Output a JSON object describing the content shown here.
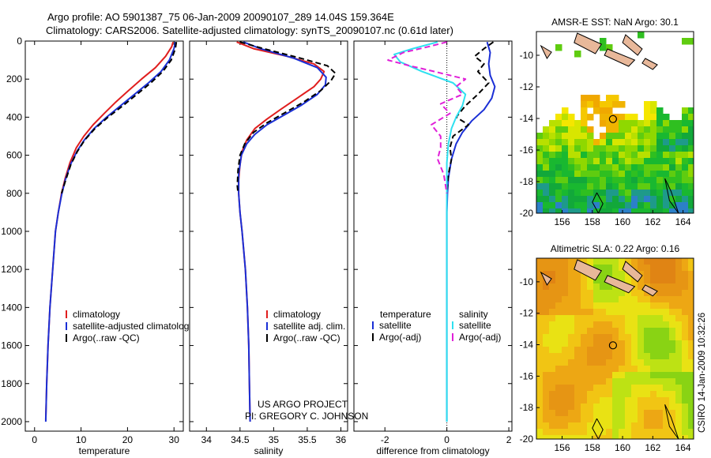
{
  "header": {
    "line1": "Argo profile: AO 5901387_75 06-Jan-2009 20090107_289 14.04S 159.364E",
    "line2": "Climatology: CARS2006. Satellite-adjusted climatology: synTS_20090107.nc (0.61d later)"
  },
  "credits": {
    "line1": "US ARGO PROJECT",
    "line2": "PI: GREGORY C. JOHNSON"
  },
  "timestamp": "CSIRO 14-Jan-2009 10:32:26",
  "colors": {
    "red": "#e01e1e",
    "blue": "#1a2fd6",
    "cyan": "#2ee0f0",
    "magenta": "#e020d8",
    "black": "#000000"
  },
  "chart_data": [
    {
      "type": "line",
      "name": "temperature-profile",
      "xlabel": "temperature",
      "ylabel": "",
      "xlim": [
        -2,
        32
      ],
      "ylim": [
        2050,
        0
      ],
      "xticks": [
        0,
        10,
        20,
        30
      ],
      "yticks": [
        0,
        200,
        400,
        600,
        800,
        1000,
        1200,
        1400,
        1600,
        1800,
        2000
      ],
      "legend": [
        "climatology",
        "satellite-adjusted climatology",
        "Argo(..raw -QC)"
      ],
      "series": [
        {
          "name": "climatology",
          "color": "red",
          "dash": false,
          "points": [
            [
              29.8,
              5
            ],
            [
              29.5,
              30
            ],
            [
              28.2,
              80
            ],
            [
              26,
              140
            ],
            [
              23,
              200
            ],
            [
              20.2,
              260
            ],
            [
              17.5,
              320
            ],
            [
              15,
              380
            ],
            [
              12.6,
              440
            ],
            [
              10.6,
              500
            ],
            [
              9,
              560
            ],
            [
              7.6,
              640
            ],
            [
              6.6,
              720
            ],
            [
              5.8,
              800
            ],
            [
              5.1,
              900
            ],
            [
              4.5,
              1000
            ],
            [
              3.9,
              1200
            ],
            [
              3.3,
              1400
            ],
            [
              2.9,
              1600
            ],
            [
              2.6,
              1800
            ],
            [
              2.4,
              1990
            ]
          ]
        },
        {
          "name": "satellite-adjusted climatology",
          "color": "blue",
          "dash": false,
          "points": [
            [
              30.3,
              5
            ],
            [
              30,
              40
            ],
            [
              29,
              100
            ],
            [
              27.2,
              160
            ],
            [
              24.5,
              220
            ],
            [
              21.5,
              280
            ],
            [
              18.5,
              340
            ],
            [
              15.5,
              400
            ],
            [
              12.8,
              460
            ],
            [
              10.7,
              520
            ],
            [
              9.1,
              580
            ],
            [
              7.7,
              650
            ],
            [
              6.6,
              730
            ],
            [
              5.8,
              810
            ],
            [
              5.1,
              900
            ],
            [
              4.5,
              1000
            ],
            [
              3.9,
              1200
            ],
            [
              3.3,
              1400
            ],
            [
              2.9,
              1600
            ],
            [
              2.6,
              1800
            ],
            [
              2.4,
              2000
            ]
          ]
        },
        {
          "name": "Argo(..raw -QC)",
          "color": "black",
          "dash": true,
          "points": [
            [
              30.5,
              5
            ],
            [
              30.3,
              40
            ],
            [
              29.4,
              100
            ],
            [
              27.6,
              160
            ],
            [
              25,
              220
            ],
            [
              22,
              280
            ],
            [
              19,
              340
            ],
            [
              15.8,
              400
            ],
            [
              13,
              460
            ],
            [
              10.8,
              520
            ],
            [
              9.2,
              580
            ],
            [
              7.8,
              650
            ],
            [
              6.7,
              730
            ],
            [
              5.8,
              800
            ]
          ]
        }
      ]
    },
    {
      "type": "line",
      "name": "salinity-profile",
      "xlabel": "salinity",
      "ylabel": "",
      "xlim": [
        33.75,
        36.1
      ],
      "ylim": [
        2050,
        0
      ],
      "xticks": [
        34,
        34.5,
        35,
        35.5,
        36
      ],
      "yticks": [],
      "legend": [
        "climatology",
        "satellite adj. clim.",
        "Argo(..raw -QC)"
      ],
      "series": [
        {
          "name": "climatology",
          "color": "red",
          "dash": false,
          "points": [
            [
              34.45,
              5
            ],
            [
              34.7,
              40
            ],
            [
              35.2,
              80
            ],
            [
              35.6,
              120
            ],
            [
              35.75,
              160
            ],
            [
              35.7,
              200
            ],
            [
              35.6,
              240
            ],
            [
              35.35,
              300
            ],
            [
              35.1,
              360
            ],
            [
              34.9,
              410
            ],
            [
              34.72,
              460
            ],
            [
              34.6,
              520
            ],
            [
              34.53,
              580
            ],
            [
              34.5,
              650
            ],
            [
              34.48,
              730
            ],
            [
              34.48,
              800
            ],
            [
              34.5,
              900
            ],
            [
              34.53,
              1000
            ],
            [
              34.58,
              1200
            ],
            [
              34.61,
              1400
            ],
            [
              34.63,
              1600
            ],
            [
              34.64,
              1800
            ],
            [
              34.65,
              2000
            ]
          ]
        },
        {
          "name": "satellite adj. clim.",
          "color": "blue",
          "dash": false,
          "points": [
            [
              34.55,
              5
            ],
            [
              34.8,
              40
            ],
            [
              35.3,
              90
            ],
            [
              35.65,
              140
            ],
            [
              35.78,
              190
            ],
            [
              35.77,
              230
            ],
            [
              35.65,
              280
            ],
            [
              35.4,
              340
            ],
            [
              35.15,
              390
            ],
            [
              34.9,
              440
            ],
            [
              34.72,
              490
            ],
            [
              34.6,
              540
            ],
            [
              34.52,
              600
            ],
            [
              34.48,
              700
            ],
            [
              34.48,
              800
            ],
            [
              34.5,
              900
            ],
            [
              34.53,
              1000
            ],
            [
              34.58,
              1200
            ],
            [
              34.61,
              1400
            ],
            [
              34.63,
              1600
            ],
            [
              34.64,
              1800
            ],
            [
              34.65,
              2000
            ]
          ]
        },
        {
          "name": "Argo(..raw -QC)",
          "color": "black",
          "dash": true,
          "points": [
            [
              34.5,
              5
            ],
            [
              34.85,
              40
            ],
            [
              35.4,
              90
            ],
            [
              35.8,
              130
            ],
            [
              35.92,
              170
            ],
            [
              35.85,
              210
            ],
            [
              35.7,
              260
            ],
            [
              35.45,
              320
            ],
            [
              35.15,
              380
            ],
            [
              34.9,
              430
            ],
            [
              34.7,
              480
            ],
            [
              34.57,
              540
            ],
            [
              34.5,
              600
            ],
            [
              34.47,
              680
            ],
            [
              34.46,
              760
            ],
            [
              34.47,
              800
            ]
          ]
        }
      ]
    },
    {
      "type": "line",
      "name": "difference-profile",
      "xlabel": "difference from climatology",
      "ylabel": "",
      "xlim": [
        -3,
        2.1
      ],
      "ylim": [
        2050,
        0
      ],
      "xticks": [
        -2,
        0,
        2
      ],
      "yticks": [],
      "legend_temperature": [
        "temperature",
        "satellite",
        "Argo(-adj)"
      ],
      "legend_salinity": [
        "salinity",
        "satellite",
        "Argo(-adj)"
      ],
      "series": [
        {
          "name": "temperature satellite",
          "color": "blue",
          "dash": false,
          "points": [
            [
              1.3,
              5
            ],
            [
              1.4,
              60
            ],
            [
              1.35,
              120
            ],
            [
              1.4,
              180
            ],
            [
              1.55,
              240
            ],
            [
              1.45,
              300
            ],
            [
              1.2,
              360
            ],
            [
              0.8,
              420
            ],
            [
              0.5,
              480
            ],
            [
              0.3,
              540
            ],
            [
              0.15,
              620
            ],
            [
              0.05,
              720
            ],
            [
              0.02,
              800
            ],
            [
              0,
              900
            ],
            [
              0,
              1200
            ],
            [
              0,
              1600
            ],
            [
              0,
              2000
            ]
          ]
        },
        {
          "name": "temperature Argo(-adj)",
          "color": "black",
          "dash": true,
          "points": [
            [
              1.5,
              5
            ],
            [
              1.2,
              40
            ],
            [
              0.9,
              80
            ],
            [
              1.2,
              120
            ],
            [
              1.0,
              160
            ],
            [
              1.35,
              220
            ],
            [
              1.0,
              280
            ],
            [
              0.6,
              340
            ],
            [
              0.3,
              400
            ],
            [
              0.7,
              440
            ],
            [
              0.2,
              500
            ],
            [
              0.1,
              560
            ],
            [
              0.15,
              620
            ],
            [
              0.05,
              700
            ],
            [
              0,
              800
            ]
          ]
        },
        {
          "name": "salinity satellite",
          "color": "cyan",
          "dash": false,
          "points": [
            [
              -0.3,
              5
            ],
            [
              -1.1,
              40
            ],
            [
              -1.7,
              70
            ],
            [
              -1.5,
              110
            ],
            [
              -0.8,
              160
            ],
            [
              0.2,
              220
            ],
            [
              0.6,
              280
            ],
            [
              0.5,
              340
            ],
            [
              0.3,
              400
            ],
            [
              0.15,
              460
            ],
            [
              0.05,
              540
            ],
            [
              0,
              640
            ],
            [
              0,
              800
            ],
            [
              0,
              1200
            ],
            [
              0,
              1600
            ],
            [
              0,
              2000
            ]
          ]
        },
        {
          "name": "salinity Argo(-adj)",
          "color": "magenta",
          "dash": true,
          "points": [
            [
              0,
              5
            ],
            [
              -0.6,
              30
            ],
            [
              -1.4,
              60
            ],
            [
              -1.9,
              100
            ],
            [
              -1.2,
              130
            ],
            [
              -0.4,
              160
            ],
            [
              0.6,
              200
            ],
            [
              0.3,
              240
            ],
            [
              0.5,
              280
            ],
            [
              -0.2,
              330
            ],
            [
              0.1,
              380
            ],
            [
              -0.5,
              440
            ],
            [
              -0.2,
              500
            ],
            [
              -0.2,
              560
            ],
            [
              -0.3,
              620
            ],
            [
              -0.1,
              700
            ],
            [
              0,
              800
            ]
          ]
        }
      ]
    },
    {
      "type": "heatmap",
      "name": "amsr-e-sst-map",
      "title": "AMSR-E SST: NaN Argo: 30.1",
      "xlim": [
        154.3,
        164.7
      ],
      "ylim": [
        -20,
        -8.5
      ],
      "xticks": [
        156,
        158,
        160,
        162,
        164
      ],
      "yticks": [
        -10,
        -12,
        -14,
        -16,
        -18,
        -20
      ],
      "marker": {
        "lon": 159.364,
        "lat": -14.04
      }
    },
    {
      "type": "heatmap",
      "name": "altimetric-sla-map",
      "title": "Altimetric SLA: 0.22 Argo: 0.16",
      "xlim": [
        154.3,
        164.7
      ],
      "ylim": [
        -20,
        -8.5
      ],
      "xticks": [
        156,
        158,
        160,
        162,
        164
      ],
      "yticks": [
        -10,
        -12,
        -14,
        -16,
        -18,
        -20
      ],
      "marker": {
        "lon": 159.364,
        "lat": -14.04
      }
    }
  ]
}
